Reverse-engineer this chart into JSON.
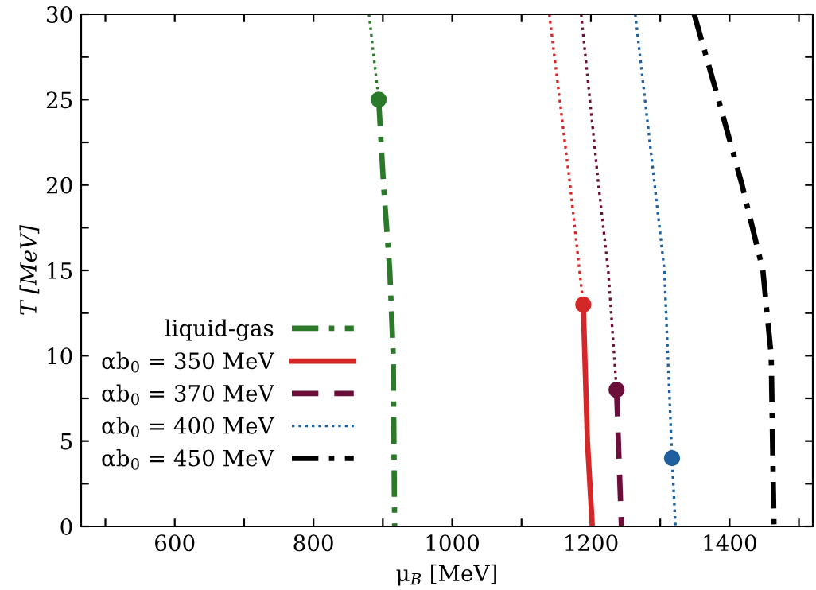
{
  "chart_data": {
    "type": "line",
    "xlabel": "μ$_{B}$ [MeV]",
    "ylabel": "T [MeV]",
    "xlim": [
      465,
      1520
    ],
    "ylim": [
      0,
      30
    ],
    "xticks": [
      {
        "value": 500,
        "label": null
      },
      600,
      {
        "value": 700,
        "label": null
      },
      800,
      {
        "value": 900,
        "label": null
      },
      1000,
      {
        "value": 1100,
        "label": null
      },
      1200,
      {
        "value": 1300,
        "label": null
      },
      1400,
      {
        "value": 1500,
        "label": null
      }
    ],
    "yticks": [
      0,
      {
        "value": 2.5,
        "label": null
      },
      5,
      {
        "value": 7.5,
        "label": null
      },
      10,
      {
        "value": 12.5,
        "label": null
      },
      15,
      {
        "value": 17.5,
        "label": null
      },
      20,
      {
        "value": 22.5,
        "label": null
      },
      25,
      {
        "value": 27.5,
        "label": null
      },
      30
    ],
    "grid": false,
    "legend": "bottom left",
    "series": [
      {
        "color": "#2a7a2a",
        "line_style": "dotted",
        "x": [
          880,
          887,
          894
        ],
        "values": [
          30,
          27.5,
          25
        ]
      },
      {
        "name": "liquid-gas",
        "color": "#2a7a2a",
        "line_style": "dashdot",
        "x": [
          894,
          901,
          910,
          915,
          917
        ],
        "values": [
          25,
          20,
          15,
          10,
          0
        ]
      },
      {
        "type": "scatter",
        "color": "#2a7a2a",
        "marker": "circle",
        "x": [
          894
        ],
        "values": [
          25
        ]
      },
      {
        "color": "#d62728",
        "line_style": "dotted",
        "x": [
          1140,
          1170,
          1189
        ],
        "values": [
          30,
          20,
          13
        ]
      },
      {
        "name": "αb$_{0}$ = 350 MeV",
        "color": "#d62728",
        "line_style": "solid",
        "x": [
          1189,
          1195,
          1202
        ],
        "values": [
          13,
          5,
          0
        ]
      },
      {
        "type": "scatter",
        "color": "#d62728",
        "marker": "circle",
        "x": [
          1189
        ],
        "values": [
          13
        ]
      },
      {
        "color": "#6b0f3a",
        "line_style": "dotted",
        "x": [
          1186,
          1211,
          1225,
          1237
        ],
        "values": [
          30,
          20,
          15,
          8
        ]
      },
      {
        "name": "αb$_{0}$ = 370 MeV",
        "color": "#6b0f3a",
        "line_style": "dashed",
        "x": [
          1237,
          1244
        ],
        "values": [
          8,
          0
        ]
      },
      {
        "type": "scatter",
        "color": "#6b0f3a",
        "marker": "circle",
        "x": [
          1237
        ],
        "values": [
          8
        ]
      },
      {
        "name": "αb$_{0}$ = 400 MeV",
        "color": "#1f5fa0",
        "line_style": "dotted",
        "x": [
          1264,
          1292,
          1306,
          1317,
          1322
        ],
        "values": [
          30,
          20,
          15,
          4,
          0
        ]
      },
      {
        "type": "scatter",
        "color": "#1f5fa0",
        "marker": "circle",
        "x": [
          1317
        ],
        "values": [
          4
        ]
      },
      {
        "name": "αb$_{0}$ = 450 MeV",
        "color": "#000000",
        "line_style": "dashdot",
        "x": [
          1349,
          1384,
          1418,
          1448,
          1460,
          1464
        ],
        "values": [
          30,
          25,
          20,
          15,
          10,
          0
        ]
      }
    ]
  }
}
